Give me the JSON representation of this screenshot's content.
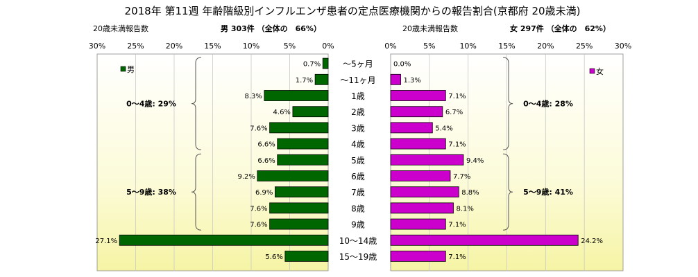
{
  "title": "2018年 第11週 年齢階級別インフルエンザ患者の定点医療機関からの報告割合(京都府 20歳未満)",
  "chart_data": {
    "type": "bar",
    "orientation": "horizontal",
    "categories": [
      "～5ヶ月",
      "～11ヶ月",
      "1歳",
      "2歳",
      "3歳",
      "4歳",
      "5歳",
      "6歳",
      "7歳",
      "8歳",
      "9歳",
      "10～14歳",
      "15～19歳"
    ],
    "series": [
      {
        "name": "男",
        "header_left": "20歳未満報告数",
        "header_right": "男 303件 （全体の　66%）",
        "color": "#006600",
        "values": [
          0.7,
          1.7,
          8.3,
          4.6,
          7.6,
          6.6,
          6.6,
          9.2,
          6.9,
          7.6,
          7.6,
          27.1,
          5.6
        ],
        "labels": [
          "0.7%",
          "1.7%",
          "8.3%",
          "4.6%",
          "7.6%",
          "6.6%",
          "6.6%",
          "9.2%",
          "6.9%",
          "7.6%",
          "7.6%",
          "27.1%",
          "5.6%"
        ],
        "axis_ticks": [
          "30%",
          "25%",
          "20%",
          "15%",
          "10%",
          "5%",
          "0%"
        ],
        "groups": [
          {
            "label": "0～4歳: 29%",
            "from": 0,
            "to": 5
          },
          {
            "label": "5～9歳: 38%",
            "from": 6,
            "to": 10
          }
        ]
      },
      {
        "name": "女",
        "header_left": "20歳未満報告数",
        "header_right": "女 297件 （全体の　62%）",
        "color": "#cc00cc",
        "values": [
          0.0,
          1.3,
          7.1,
          6.7,
          5.4,
          7.1,
          9.4,
          7.7,
          8.8,
          8.1,
          7.1,
          24.2,
          7.1
        ],
        "labels": [
          "0.0%",
          "1.3%",
          "7.1%",
          "6.7%",
          "5.4%",
          "7.1%",
          "9.4%",
          "7.7%",
          "8.8%",
          "8.1%",
          "7.1%",
          "24.2%",
          "7.1%"
        ],
        "axis_ticks": [
          "0%",
          "5%",
          "10%",
          "15%",
          "20%",
          "25%",
          "30%"
        ],
        "groups": [
          {
            "label": "0～4歳: 28%",
            "from": 0,
            "to": 5
          },
          {
            "label": "5～9歳: 41%",
            "from": 6,
            "to": 10
          }
        ]
      }
    ],
    "xlim": [
      0,
      30
    ],
    "grid": true,
    "legend_position": "top"
  }
}
